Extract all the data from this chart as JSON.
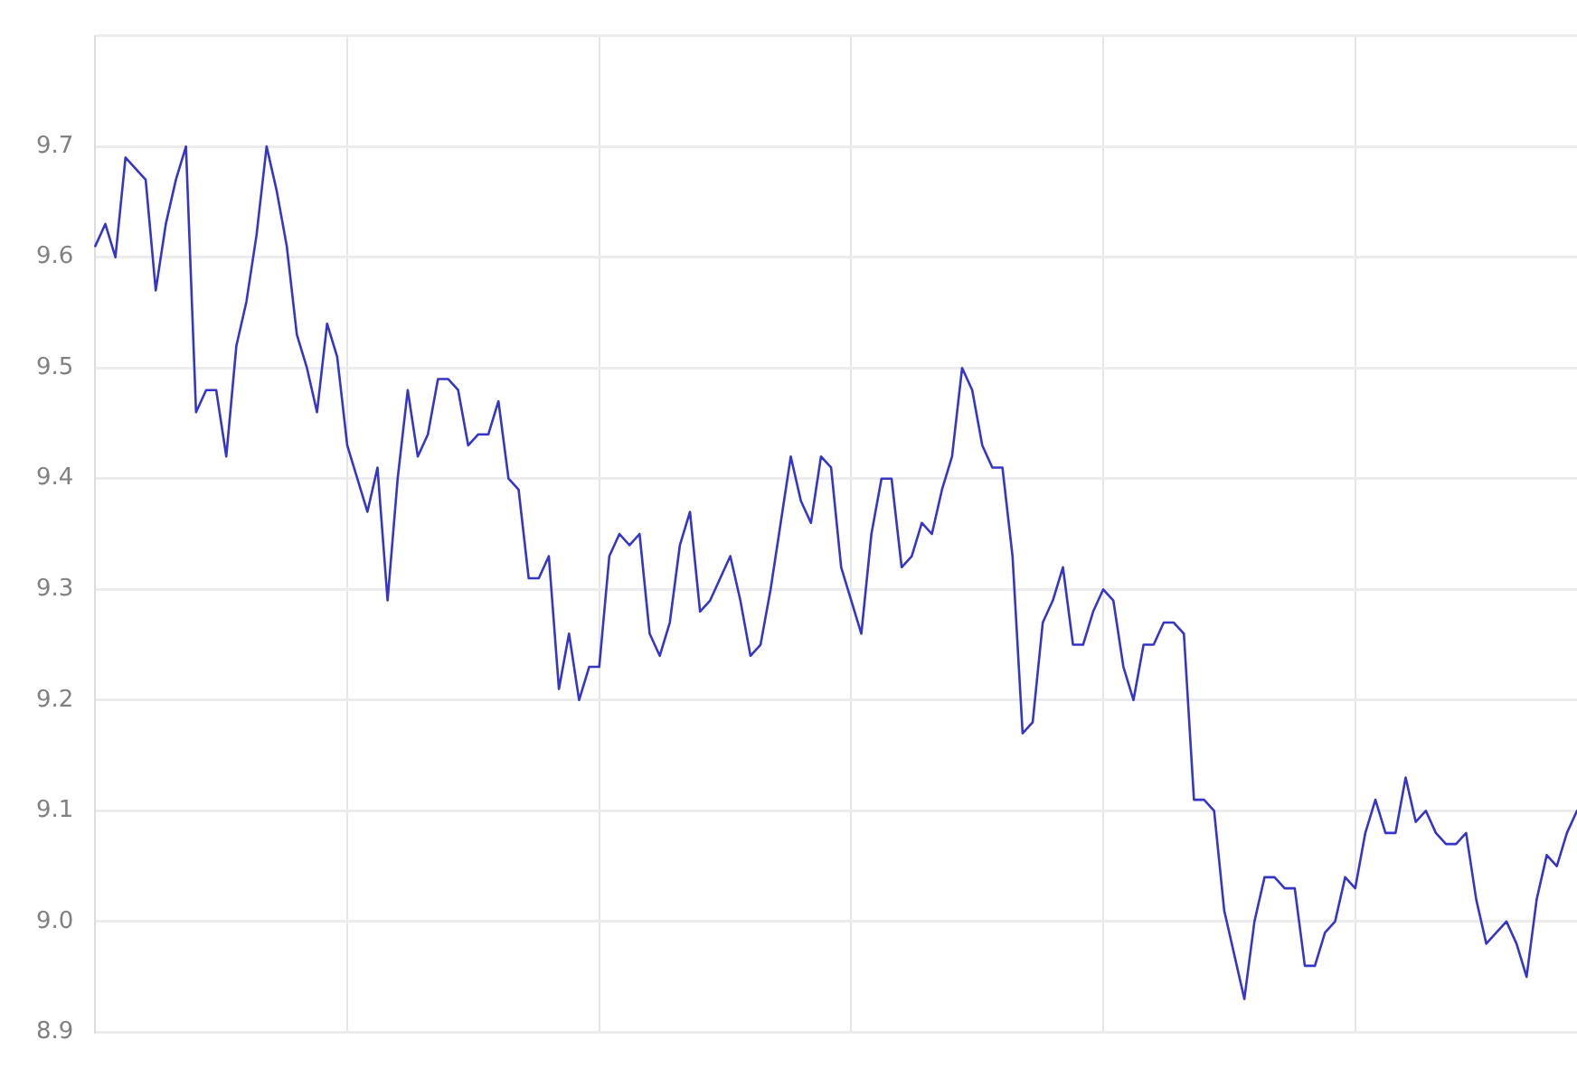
{
  "chart_data": {
    "type": "line",
    "categories": [
      null,
      null,
      null,
      null,
      null,
      null,
      null,
      null,
      null,
      null,
      null,
      null,
      null,
      null,
      null,
      null,
      null,
      null,
      null,
      null,
      null,
      null,
      null,
      null,
      null,
      null,
      null,
      null,
      null,
      null,
      null,
      null,
      null,
      null,
      null,
      null,
      null,
      null,
      null,
      null,
      null,
      null,
      null,
      null,
      null,
      null,
      null,
      null,
      null,
      null,
      null,
      null,
      null,
      null,
      null,
      null,
      null,
      null,
      null,
      null,
      null,
      null,
      null,
      null,
      null,
      null,
      null,
      null,
      null,
      null,
      null,
      null,
      null,
      null,
      null,
      null,
      null,
      null,
      null,
      null,
      null,
      null,
      null,
      null,
      null,
      null,
      null,
      null,
      null,
      null,
      null,
      null,
      null,
      null,
      null,
      null,
      null,
      null,
      null,
      null,
      null,
      null,
      null,
      null,
      null,
      null,
      null,
      null,
      null,
      null,
      null,
      null,
      null,
      null,
      null,
      null,
      null,
      null,
      null,
      null,
      null,
      null,
      null,
      null,
      null,
      null,
      null,
      null,
      null,
      null,
      null,
      null,
      null,
      null,
      null,
      null,
      null,
      null,
      null,
      null,
      null,
      null,
      null,
      null,
      null,
      null,
      null,
      null
    ],
    "series": [
      {
        "color": "#3535c8",
        "values": [
          9.61,
          9.63,
          9.6,
          9.69,
          9.68,
          9.67,
          9.57,
          9.63,
          9.67,
          9.7,
          9.46,
          9.48,
          9.48,
          9.42,
          9.52,
          9.56,
          9.62,
          9.7,
          9.66,
          9.61,
          9.53,
          9.5,
          9.46,
          9.54,
          9.51,
          9.43,
          9.4,
          9.37,
          9.41,
          9.29,
          9.4,
          9.48,
          9.42,
          9.44,
          9.49,
          9.49,
          9.48,
          9.43,
          9.44,
          9.44,
          9.47,
          9.4,
          9.39,
          9.31,
          9.31,
          9.33,
          9.21,
          9.26,
          9.2,
          9.23,
          9.23,
          9.33,
          9.35,
          9.34,
          9.35,
          9.26,
          9.24,
          9.27,
          9.34,
          9.37,
          9.28,
          9.29,
          9.31,
          9.33,
          9.29,
          9.24,
          9.25,
          9.3,
          9.36,
          9.42,
          9.38,
          9.36,
          9.42,
          9.41,
          9.32,
          9.29,
          9.26,
          9.35,
          9.4,
          9.4,
          9.32,
          9.33,
          9.36,
          9.35,
          9.39,
          9.42,
          9.5,
          9.48,
          9.43,
          9.41,
          9.41,
          9.33,
          9.17,
          9.18,
          9.27,
          9.29,
          9.32,
          9.25,
          9.25,
          9.28,
          9.3,
          9.29,
          9.23,
          9.2,
          9.25,
          9.25,
          9.27,
          9.27,
          9.26,
          9.11,
          9.11,
          9.1,
          9.01,
          8.97,
          8.93,
          9.0,
          9.04,
          9.04,
          9.03,
          9.03,
          8.96,
          8.96,
          8.99,
          9.0,
          9.04,
          9.03,
          9.08,
          9.11,
          9.08,
          9.08,
          9.13,
          9.09,
          9.1,
          9.08,
          9.07,
          9.07,
          9.08,
          9.02,
          8.98,
          8.99,
          9.0,
          8.98,
          8.95,
          9.02,
          9.06,
          9.05,
          9.08,
          9.1
        ]
      }
    ],
    "ylim": [
      8.9,
      9.8
    ],
    "yticks": [
      {
        "value": 8.9,
        "label": "8.9"
      },
      {
        "value": 9.0,
        "label": "9.0"
      },
      {
        "value": 9.1,
        "label": "9.1"
      },
      {
        "value": 9.2,
        "label": "9.2"
      },
      {
        "value": 9.3,
        "label": "9.3"
      },
      {
        "value": 9.4,
        "label": "9.4"
      },
      {
        "value": 9.5,
        "label": "9.5"
      },
      {
        "value": 9.6,
        "label": "9.6"
      },
      {
        "value": 9.7,
        "label": "9.7"
      },
      {
        "value": 9.8,
        "label": null
      }
    ],
    "tick_labels": "y",
    "grid": true,
    "marker": "none",
    "line_style": "solid",
    "legend": false
  }
}
